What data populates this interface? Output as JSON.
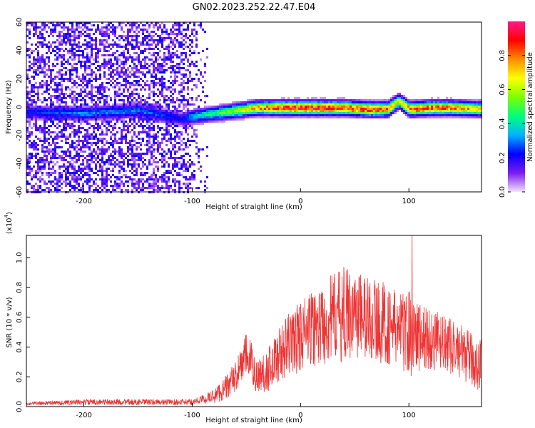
{
  "title": "GN02.2023.252.22.47.E04",
  "chart_data": [
    {
      "type": "heatmap",
      "name": "spectrogram",
      "xlabel": "Height of straight line (km)",
      "ylabel": "Frequency (Hz)",
      "xlim": [
        -253,
        167
      ],
      "ylim": [
        -60,
        60
      ],
      "x_ticks": [
        -200,
        -100,
        0,
        100
      ],
      "y_ticks": [
        -60,
        -40,
        -20,
        0,
        20,
        40,
        60
      ],
      "colorbar": {
        "label": "Normalized spectral amplitude",
        "range": [
          0,
          1
        ],
        "ticks": [
          "0.0",
          "0.2",
          "0.4",
          "0.6",
          "0.8"
        ],
        "colors": [
          "#f2e3fb",
          "#7a1cf0",
          "#0000ff",
          "#00b4ff",
          "#00ff7a",
          "#7dff00",
          "#ffff00",
          "#ff8c00",
          "#ff0000",
          "#ff1a8c"
        ]
      },
      "ridge": {
        "x": [
          -253,
          -200,
          -150,
          -110,
          -100,
          -80,
          -60,
          -40,
          -20,
          0,
          20,
          40,
          60,
          80,
          90,
          100,
          120,
          140,
          167
        ],
        "freq": [
          -3,
          -4,
          -2,
          -8,
          -6,
          -4,
          -2,
          0,
          0,
          0,
          0,
          0,
          -1,
          -1,
          5,
          -1,
          0,
          0,
          -1
        ],
        "amplitude": [
          0.22,
          0.3,
          0.3,
          0.2,
          0.35,
          0.45,
          0.6,
          0.75,
          0.85,
          0.9,
          0.9,
          0.85,
          0.85,
          0.8,
          0.6,
          0.8,
          0.85,
          0.8,
          0.7
        ]
      },
      "noise_region_x": [
        -253,
        -85
      ]
    },
    {
      "type": "line",
      "name": "snr",
      "xlabel": "Height of straight line (km)",
      "ylabel": "SNR (10 * v/v)",
      "scale_label_base": "(x10",
      "scale_label_exp": "4",
      "scale_label_close": ")",
      "xlim": [
        -253,
        167
      ],
      "ylim": [
        0,
        1.15
      ],
      "x_ticks": [
        -200,
        -100,
        0,
        100
      ],
      "y_ticks": [
        "0.0",
        "0.2",
        "0.4",
        "0.6",
        "0.8",
        "1.0"
      ],
      "color": "#ee3333",
      "series": [
        {
          "x": [
            -253,
            -200,
            -150,
            -100,
            -90,
            -80,
            -70,
            -60,
            -50,
            -45,
            -40,
            -30,
            -20,
            -10,
            0,
            10,
            20,
            30,
            40,
            50,
            60,
            70,
            80,
            90,
            100,
            110,
            120,
            130,
            140,
            150,
            160,
            167
          ],
          "y": [
            0.02,
            0.03,
            0.03,
            0.03,
            0.05,
            0.07,
            0.12,
            0.2,
            0.35,
            0.28,
            0.2,
            0.25,
            0.35,
            0.42,
            0.48,
            0.52,
            0.55,
            0.6,
            0.62,
            0.63,
            0.6,
            0.58,
            0.55,
            0.52,
            0.5,
            0.47,
            0.45,
            0.42,
            0.4,
            0.36,
            0.3,
            0.28
          ],
          "spread": [
            0.01,
            0.02,
            0.02,
            0.02,
            0.03,
            0.05,
            0.08,
            0.1,
            0.15,
            0.15,
            0.12,
            0.15,
            0.18,
            0.22,
            0.25,
            0.25,
            0.28,
            0.3,
            0.32,
            0.3,
            0.3,
            0.28,
            0.28,
            0.25,
            0.3,
            0.25,
            0.22,
            0.2,
            0.18,
            0.18,
            0.18,
            0.2
          ]
        }
      ],
      "peak": {
        "x": 103,
        "y": 1.15
      }
    }
  ]
}
